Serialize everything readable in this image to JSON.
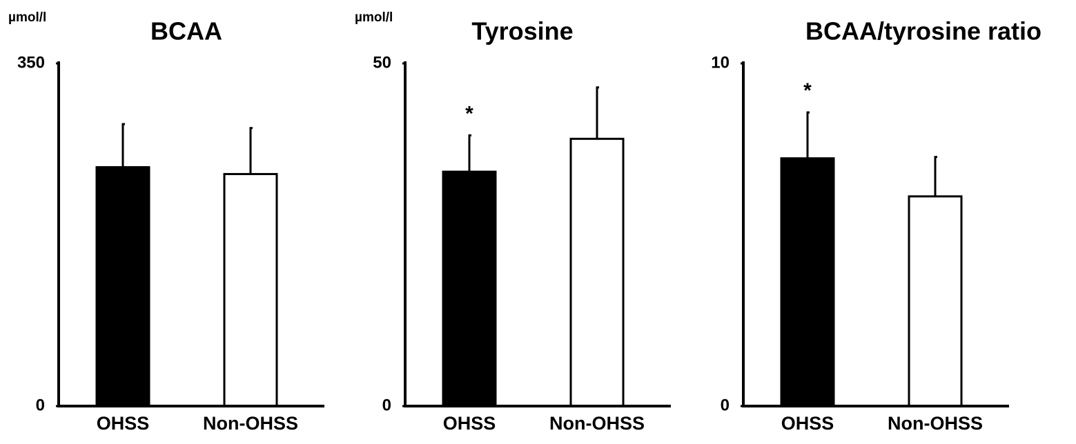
{
  "chart_data": [
    {
      "type": "bar",
      "title": "BCAA",
      "y_label": "µmol/l",
      "categories": [
        "OHSS",
        "Non-OHSS"
      ],
      "values": [
        244,
        237
      ],
      "errors": [
        44,
        47
      ],
      "colors": [
        "#000000",
        "#ffffff"
      ],
      "annotations": [
        null,
        null
      ],
      "ylim": [
        0,
        350
      ],
      "yticks": [
        0,
        350
      ]
    },
    {
      "type": "bar",
      "title": "Tyrosine",
      "y_label": "µmol/l",
      "categories": [
        "OHSS",
        "Non-OHSS"
      ],
      "values": [
        34.2,
        39.0
      ],
      "errors": [
        5.3,
        7.5
      ],
      "colors": [
        "#000000",
        "#ffffff"
      ],
      "annotations": [
        "*",
        null
      ],
      "ylim": [
        0,
        50
      ],
      "yticks": [
        0,
        50
      ]
    },
    {
      "type": "bar",
      "title": "BCAA/tyrosine ratio",
      "categories": [
        "OHSS",
        "Non-OHSS"
      ],
      "values": [
        7.23,
        6.12
      ],
      "errors": [
        1.34,
        1.15
      ],
      "colors": [
        "#000000",
        "#ffffff"
      ],
      "annotations": [
        "*",
        null
      ],
      "ylim": [
        0,
        10
      ],
      "yticks": [
        0,
        10
      ]
    }
  ]
}
